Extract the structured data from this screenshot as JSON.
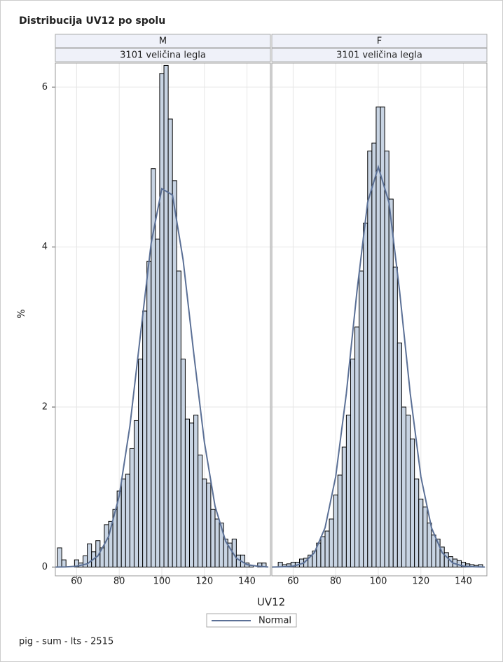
{
  "title": "Distribucija UV12 po spolu",
  "footnote": "pig - sum - lts - 2515",
  "xlabel": "UV12",
  "ylabel": "%",
  "legend": {
    "name": "Normal",
    "color": "#5b7096"
  },
  "chart_data": [
    {
      "type": "histogram",
      "panel": "M",
      "subpanel": "3101 veličina legla",
      "color": "#c8d4e3",
      "grid": true,
      "bins": [
        51,
        53,
        55,
        57,
        59,
        61,
        63,
        65,
        67,
        69,
        71,
        73,
        75,
        77,
        79,
        81,
        83,
        85,
        87,
        89,
        91,
        93,
        95,
        97,
        99,
        101,
        103,
        105,
        107,
        109,
        111,
        113,
        115,
        117,
        119,
        121,
        123,
        125,
        127,
        129,
        131,
        133,
        135,
        137,
        139,
        141,
        143,
        145,
        147,
        149
      ],
      "values": [
        0.24,
        0.09,
        0,
        0,
        0.09,
        0.05,
        0.14,
        0.29,
        0.19,
        0.33,
        0.24,
        0.53,
        0.57,
        0.72,
        0.95,
        1.1,
        1.16,
        1.48,
        1.83,
        2.6,
        3.2,
        3.82,
        4.98,
        4.1,
        6.17,
        6.27,
        5.6,
        4.83,
        3.7,
        2.6,
        1.85,
        1.8,
        1.9,
        1.4,
        1.1,
        1.05,
        0.72,
        0.6,
        0.55,
        0.35,
        0.3,
        0.35,
        0.15,
        0.15,
        0.05,
        0.02,
        0,
        0.05,
        0.05
      ],
      "normal": {
        "x": [
          50,
          55,
          60,
          65,
          70,
          75,
          80,
          85,
          90,
          95,
          100,
          105,
          110,
          115,
          120,
          125,
          130,
          135,
          140,
          145,
          150
        ],
        "values": [
          0,
          0.002,
          0.01,
          0.04,
          0.14,
          0.38,
          0.89,
          1.76,
          2.91,
          4.05,
          4.73,
          4.65,
          3.84,
          2.67,
          1.56,
          0.76,
          0.32,
          0.11,
          0.03,
          0.01,
          0
        ]
      },
      "xlim": [
        50,
        151
      ],
      "ylim": [
        -0.11,
        6.3
      ],
      "xticks": [
        60,
        80,
        100,
        120,
        140
      ],
      "yticks": [
        0,
        2,
        4,
        6
      ]
    },
    {
      "type": "histogram",
      "panel": "F",
      "subpanel": "3101 veličina legla",
      "color": "#c8d4e3",
      "grid": true,
      "bins": [
        51,
        53,
        55,
        57,
        59,
        61,
        63,
        65,
        67,
        69,
        71,
        73,
        75,
        77,
        79,
        81,
        83,
        85,
        87,
        89,
        91,
        93,
        95,
        97,
        99,
        101,
        103,
        105,
        107,
        109,
        111,
        113,
        115,
        117,
        119,
        121,
        123,
        125,
        127,
        129,
        131,
        133,
        135,
        137,
        139,
        141,
        143,
        145,
        147,
        149
      ],
      "values": [
        0,
        0.06,
        0.03,
        0.04,
        0.06,
        0.06,
        0.1,
        0.11,
        0.15,
        0.2,
        0.3,
        0.38,
        0.45,
        0.6,
        0.9,
        1.15,
        1.5,
        1.9,
        2.6,
        3.0,
        3.7,
        4.3,
        5.2,
        5.3,
        5.75,
        5.75,
        5.2,
        4.6,
        3.75,
        2.8,
        2.0,
        1.9,
        1.6,
        1.1,
        0.85,
        0.75,
        0.55,
        0.4,
        0.35,
        0.25,
        0.18,
        0.13,
        0.1,
        0.08,
        0.06,
        0.04,
        0.03,
        0.02,
        0.03
      ],
      "normal": {
        "x": [
          50,
          55,
          60,
          65,
          70,
          75,
          80,
          85,
          90,
          95,
          100,
          105,
          110,
          115,
          120,
          125,
          130,
          135,
          140,
          145,
          150
        ],
        "values": [
          0,
          0.003,
          0.01,
          0.05,
          0.18,
          0.49,
          1.13,
          2.17,
          3.45,
          4.56,
          5.0,
          4.56,
          3.45,
          2.17,
          1.13,
          0.49,
          0.18,
          0.05,
          0.01,
          0.003,
          0
        ]
      },
      "xlim": [
        50,
        151
      ],
      "ylim": [
        -0.11,
        6.3
      ],
      "xticks": [
        60,
        80,
        100,
        120,
        140
      ],
      "yticks": [
        0,
        2,
        4,
        6
      ]
    }
  ]
}
